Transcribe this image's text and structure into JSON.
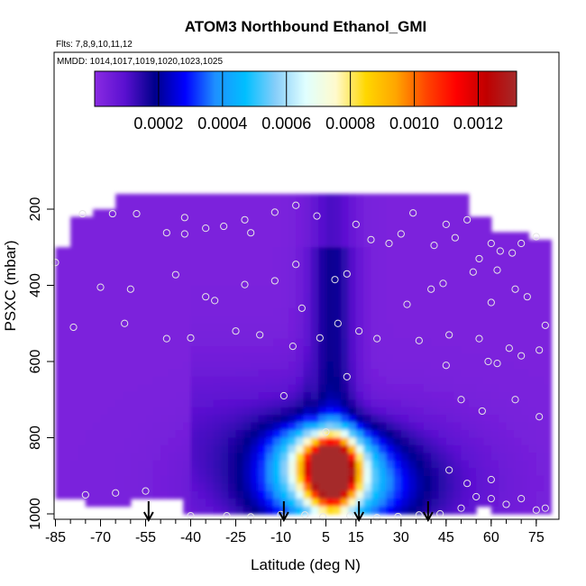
{
  "chart_data": {
    "type": "heatmap",
    "title": "ATOM3 Northbound Ethanol_GMI",
    "annotations": [
      "Flts: 7,8,9,10,11,12",
      "MMDD: 1014,1017,1019,1020,1023,1025"
    ],
    "xlabel": "Latitude (deg N)",
    "ylabel": "PSXC (mbar)",
    "x_ticks": [
      -85,
      -70,
      -55,
      -40,
      -25,
      -10,
      5,
      15,
      30,
      45,
      60,
      75
    ],
    "y_ticks": [
      200,
      400,
      600,
      800,
      1000
    ],
    "xlim": [
      -85,
      80
    ],
    "ylim": [
      1000,
      0
    ],
    "y_reversed": true,
    "colorbar": {
      "ticks": [
        0.0002,
        0.0004,
        0.0006,
        0.0008,
        0.001,
        0.0012
      ],
      "tick_labels": [
        "0.0002",
        "0.0004",
        "0.0006",
        "0.0008",
        "0.0010",
        "0.0012"
      ],
      "range": [
        0,
        0.00132
      ],
      "colors": [
        "#8a2be2",
        "#5a10d0",
        "#00008b",
        "#0000ff",
        "#1e90ff",
        "#00bfff",
        "#87cefa",
        "#e0ffff",
        "#fffacd",
        "#ffd700",
        "#ffa500",
        "#ff4500",
        "#ff0000",
        "#c00000",
        "#a52a2a"
      ]
    },
    "profile_markers_lat": [
      -54,
      -9,
      16,
      39
    ],
    "heatmap_peak": {
      "lat": 8,
      "pressure_mbar": 880,
      "value": 0.00125
    },
    "sample_points": [
      [
        -76,
        212
      ],
      [
        -66,
        212
      ],
      [
        -58,
        212
      ],
      [
        -42,
        222
      ],
      [
        -29,
        245
      ],
      [
        -22,
        228
      ],
      [
        -12,
        208
      ],
      [
        -5,
        190
      ],
      [
        -20,
        262
      ],
      [
        -42,
        265
      ],
      [
        -48,
        262
      ],
      [
        -35,
        250
      ],
      [
        2,
        218
      ],
      [
        15,
        240
      ],
      [
        34,
        210
      ],
      [
        45,
        240
      ],
      [
        52,
        228
      ],
      [
        -85,
        340
      ],
      [
        -70,
        405
      ],
      [
        -60,
        410
      ],
      [
        -45,
        372
      ],
      [
        -35,
        430
      ],
      [
        -32,
        440
      ],
      [
        -22,
        398
      ],
      [
        -12,
        388
      ],
      [
        -5,
        345
      ],
      [
        -3,
        460
      ],
      [
        8,
        385
      ],
      [
        12,
        370
      ],
      [
        20,
        280
      ],
      [
        26,
        290
      ],
      [
        30,
        265
      ],
      [
        41,
        295
      ],
      [
        48,
        275
      ],
      [
        56,
        330
      ],
      [
        60,
        290
      ],
      [
        63,
        310
      ],
      [
        67,
        315
      ],
      [
        70,
        290
      ],
      [
        75,
        272
      ],
      [
        40,
        410
      ],
      [
        44,
        395
      ],
      [
        54,
        365
      ],
      [
        62,
        360
      ],
      [
        68,
        410
      ],
      [
        72,
        430
      ],
      [
        78,
        505
      ],
      [
        32,
        450
      ],
      [
        60,
        445
      ],
      [
        -79,
        510
      ],
      [
        -62,
        500
      ],
      [
        -48,
        540
      ],
      [
        -40,
        538
      ],
      [
        -25,
        520
      ],
      [
        -17,
        530
      ],
      [
        -6,
        560
      ],
      [
        3,
        538
      ],
      [
        9,
        500
      ],
      [
        16,
        520
      ],
      [
        22,
        540
      ],
      [
        36,
        545
      ],
      [
        46,
        530
      ],
      [
        56,
        540
      ],
      [
        66,
        565
      ],
      [
        70,
        585
      ],
      [
        76,
        570
      ],
      [
        59,
        600
      ],
      [
        62,
        605
      ],
      [
        45,
        610
      ],
      [
        -9,
        690
      ],
      [
        5,
        785
      ],
      [
        50,
        700
      ],
      [
        57,
        730
      ],
      [
        68,
        700
      ],
      [
        76,
        745
      ],
      [
        12,
        640
      ],
      [
        -65,
        945
      ],
      [
        -75,
        950
      ],
      [
        -55,
        940
      ],
      [
        -40,
        1005
      ],
      [
        -28,
        1005
      ],
      [
        -20,
        1008
      ],
      [
        -10,
        1002
      ],
      [
        -2,
        1003
      ],
      [
        4,
        1008
      ],
      [
        13,
        1005
      ],
      [
        22,
        1010
      ],
      [
        29,
        1007
      ],
      [
        36,
        1003
      ],
      [
        43,
        1000
      ],
      [
        50,
        985
      ],
      [
        55,
        955
      ],
      [
        60,
        960
      ],
      [
        65,
        975
      ],
      [
        70,
        960
      ],
      [
        75,
        990
      ],
      [
        78,
        985
      ],
      [
        52,
        920
      ],
      [
        60,
        910
      ],
      [
        46,
        885
      ]
    ]
  }
}
